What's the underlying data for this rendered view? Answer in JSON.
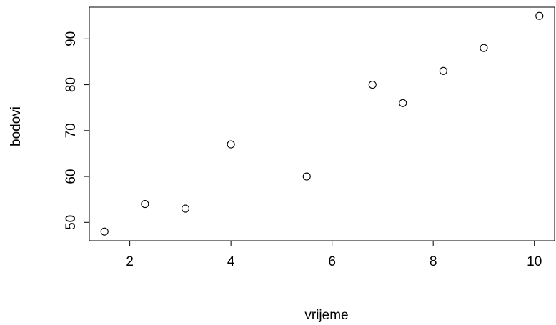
{
  "chart_data": {
    "type": "scatter",
    "title": "",
    "xlabel": "vrijeme",
    "ylabel": "bodovi",
    "xlim": [
      1.2,
      10.4
    ],
    "ylim": [
      46.0,
      96.9
    ],
    "xticks": [
      2,
      4,
      6,
      8,
      10
    ],
    "yticks": [
      50,
      60,
      70,
      80,
      90
    ],
    "grid": false,
    "legend": "none",
    "marker": "open-circle",
    "x": [
      1.5,
      2.3,
      3.1,
      4.0,
      5.5,
      6.8,
      7.4,
      8.2,
      9.0,
      10.1
    ],
    "y": [
      48,
      54,
      53,
      67,
      60,
      80,
      76,
      83,
      88,
      95
    ]
  }
}
